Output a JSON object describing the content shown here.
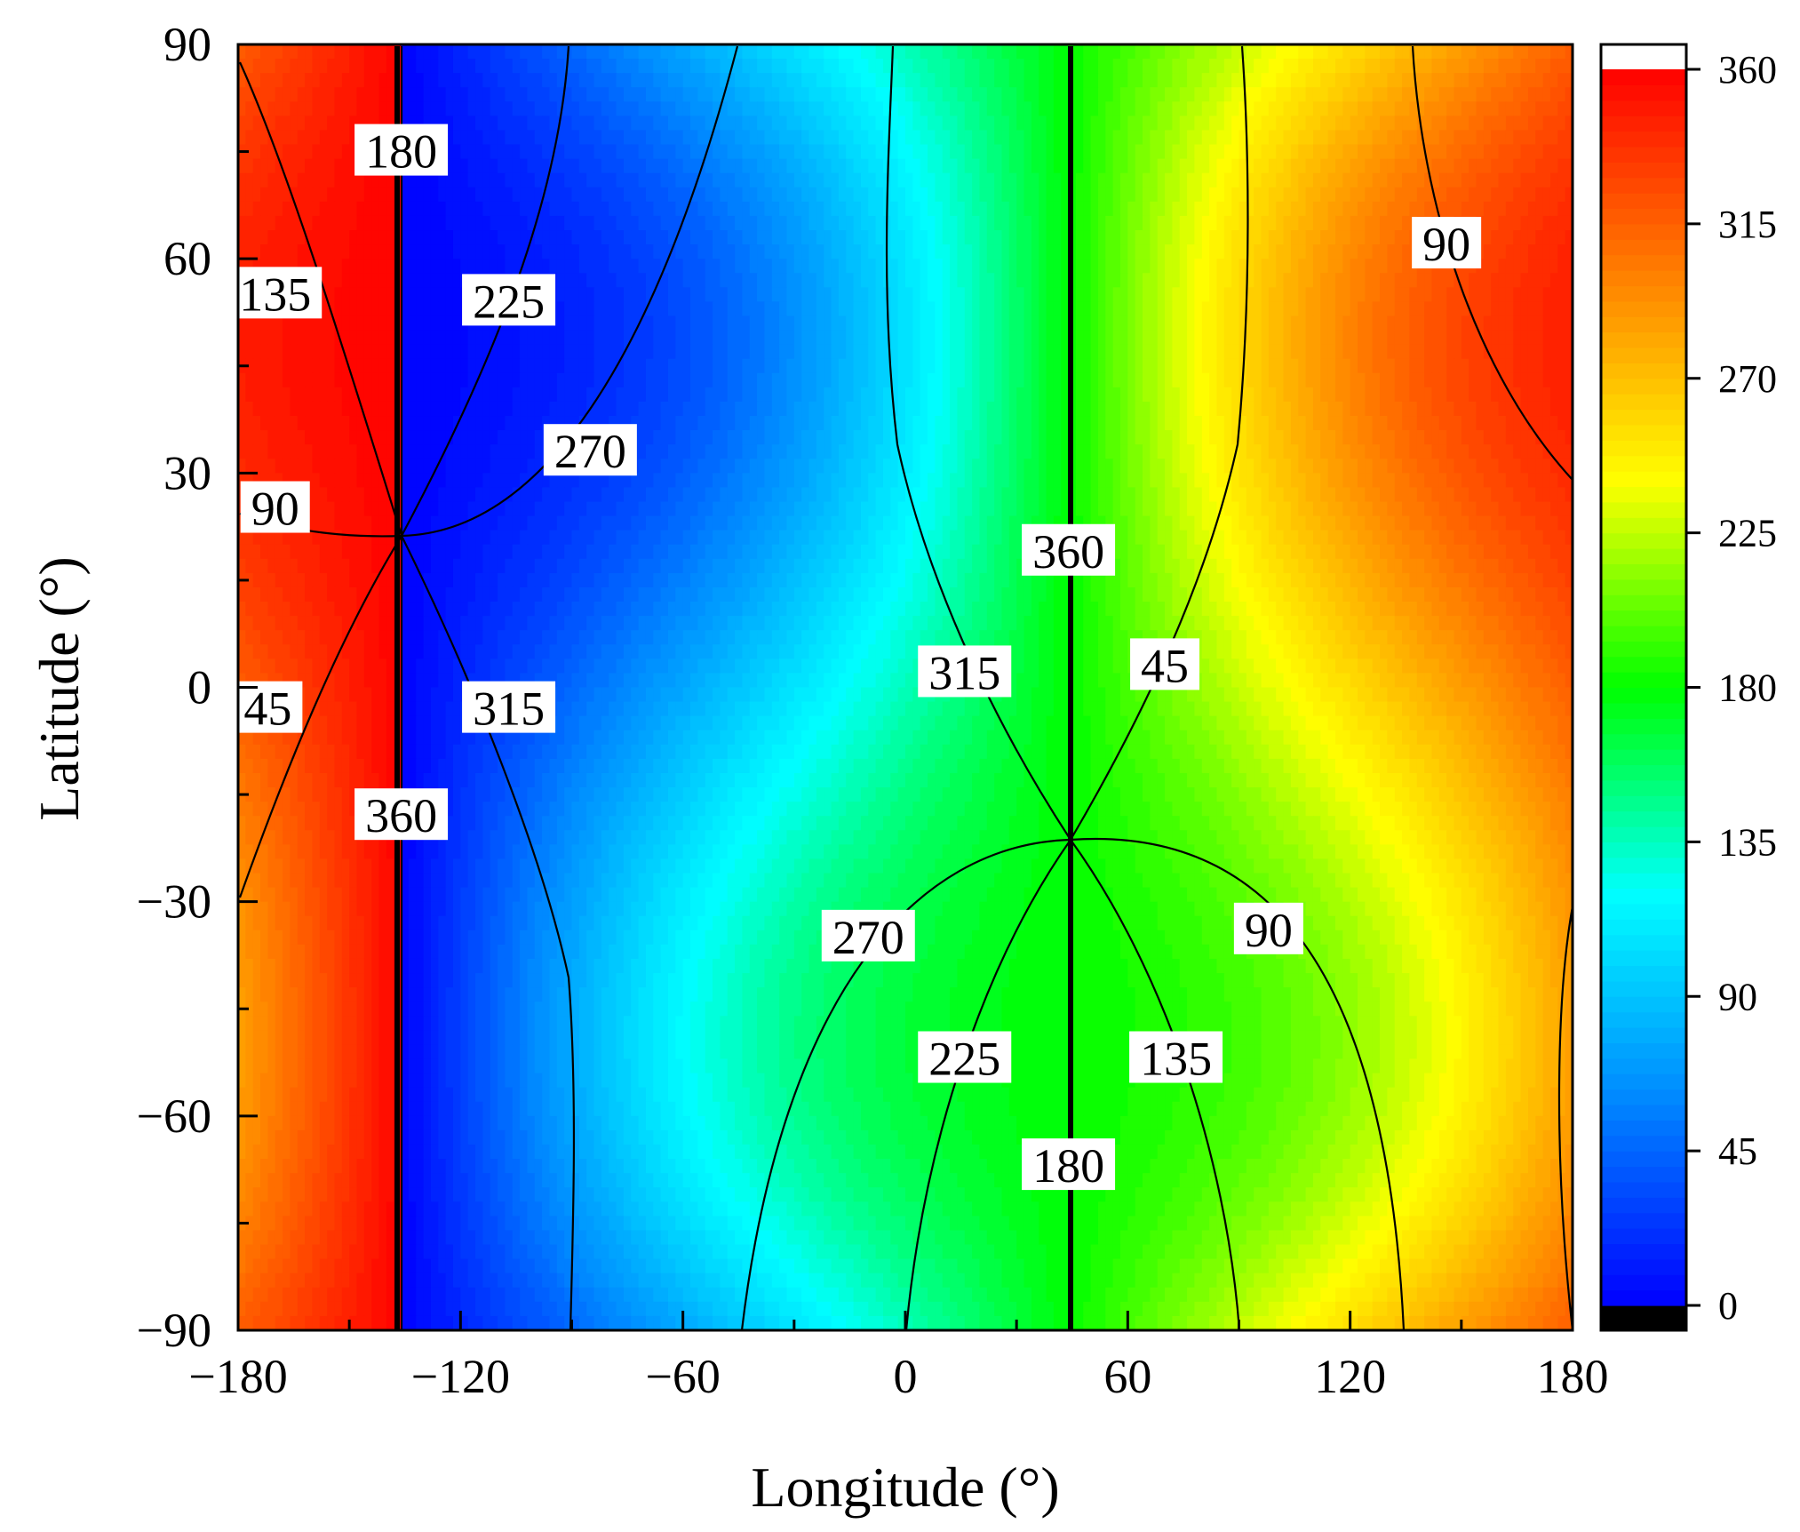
{
  "chart_data": {
    "type": "heatmap",
    "subtype": "filled-contour",
    "title": "",
    "xlabel": "Longitude (°)",
    "ylabel": "Latitude (°)",
    "xlim": [
      -180,
      180
    ],
    "ylim": [
      -90,
      90
    ],
    "xticks": [
      -180,
      -120,
      -60,
      0,
      60,
      120,
      180
    ],
    "yticks": [
      90,
      60,
      30,
      0,
      -30,
      -60,
      -90
    ],
    "xtick_labels": [
      "−180",
      "−120",
      "−60",
      "0",
      "60",
      "120",
      "180"
    ],
    "ytick_labels": [
      "90",
      "60",
      "30",
      "0",
      "−30",
      "−60",
      "−90"
    ],
    "colorbar": {
      "range": [
        0,
        360
      ],
      "ticks": [
        360,
        315,
        270,
        225,
        180,
        135,
        90,
        45,
        0
      ],
      "tick_labels": [
        "360",
        "315",
        "270",
        "225",
        "180",
        "135",
        "90",
        "45",
        "0"
      ],
      "colors": [
        "#0000ff",
        "#0087ff",
        "#00ffff",
        "#00ff00",
        "#ffff00",
        "#ff8000",
        "#ff0000"
      ],
      "under_color": "#000000",
      "over_color": "#ffffff",
      "levels": 80
    },
    "field": {
      "description_value": "angle(degrees 0-360), singularities",
      "singular_points": [
        {
          "lon": -136,
          "lat": 21
        },
        {
          "lon": 44,
          "lat": -21
        }
      ]
    },
    "contour_levels": [
      45,
      90,
      135,
      180,
      225,
      270,
      315,
      360
    ],
    "contour_labels": [
      {
        "text": "180",
        "lon": -136,
        "lat": 75
      },
      {
        "text": "135",
        "lon": -170,
        "lat": 55
      },
      {
        "text": "225",
        "lon": -107,
        "lat": 54
      },
      {
        "text": "270",
        "lon": -85,
        "lat": 33
      },
      {
        "text": "90",
        "lon": -170,
        "lat": 25
      },
      {
        "text": "45",
        "lon": -172,
        "lat": -3
      },
      {
        "text": "315",
        "lon": -107,
        "lat": -3
      },
      {
        "text": "360",
        "lon": -136,
        "lat": -18
      },
      {
        "text": "360",
        "lon": 44,
        "lat": 19
      },
      {
        "text": "315",
        "lon": 16,
        "lat": 2
      },
      {
        "text": "45",
        "lon": 70,
        "lat": 3
      },
      {
        "text": "90",
        "lon": 146,
        "lat": 62
      },
      {
        "text": "270",
        "lon": -10,
        "lat": -35
      },
      {
        "text": "90",
        "lon": 98,
        "lat": -34
      },
      {
        "text": "225",
        "lon": 16,
        "lat": -52
      },
      {
        "text": "135",
        "lon": 73,
        "lat": -52
      },
      {
        "text": "180",
        "lon": 44,
        "lat": -67
      }
    ]
  }
}
